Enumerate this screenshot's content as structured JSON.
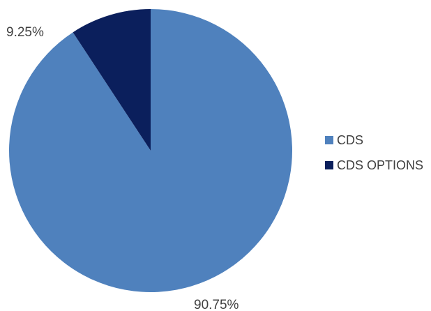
{
  "chart_data": {
    "type": "pie",
    "slices": [
      {
        "label": "CDS",
        "value": 90.75,
        "display": "90.75%",
        "color": "#4f81bd"
      },
      {
        "label": "CDS OPTIONS",
        "value": 9.25,
        "display": "9.25%",
        "color": "#0b1f5c"
      }
    ],
    "legend_position": "right"
  }
}
